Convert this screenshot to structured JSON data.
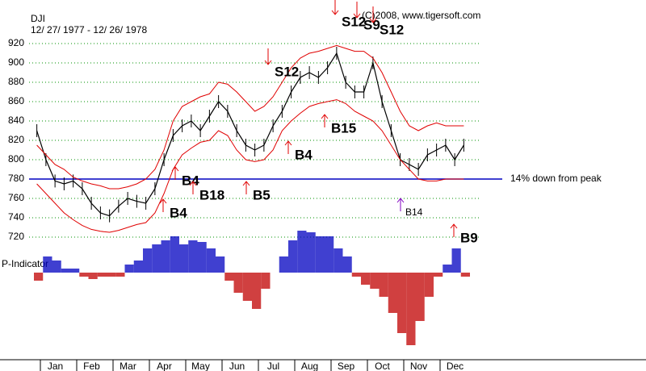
{
  "chart_data": {
    "type": "price-bands",
    "title": "DJI",
    "subtitle": "12/ 27/ 1977 - 12/ 26/ 1978",
    "credit": "(C)2008, www.tigersoft.com",
    "categories": [
      "Jan",
      "Feb",
      "Mar",
      "Apr",
      "May",
      "Jun",
      "Jul",
      "Aug",
      "Sep",
      "Oct",
      "Nov",
      "Dec"
    ],
    "ylim": [
      720,
      920
    ],
    "yticks": [
      720,
      740,
      760,
      780,
      800,
      820,
      840,
      860,
      880,
      900,
      920
    ],
    "grid": true,
    "series": [
      {
        "color": "#000000",
        "values": [
          [
            830,
            800,
            778,
            775
          ],
          [
            778,
            770,
            755,
            745
          ],
          [
            742,
            752,
            760,
            757
          ],
          [
            755,
            770,
            800,
            825
          ],
          [
            835,
            840,
            830,
            845
          ],
          [
            860,
            850,
            830,
            815
          ],
          [
            810,
            815,
            835,
            850
          ],
          [
            870,
            885,
            890,
            885
          ],
          [
            895,
            910,
            880,
            870
          ],
          [
            870,
            900,
            860,
            830
          ],
          [
            800,
            795,
            790,
            805
          ],
          [
            810,
            815,
            800,
            815
          ]
        ]
      },
      {
        "color": "#e00000",
        "values": [
          [
            815,
            805,
            795,
            790
          ],
          [
            782,
            778,
            775,
            773
          ],
          [
            770,
            770,
            772,
            775
          ],
          [
            780,
            790,
            810,
            840
          ],
          [
            855,
            860,
            865,
            868
          ],
          [
            880,
            878,
            870,
            860
          ],
          [
            850,
            855,
            865,
            880
          ],
          [
            895,
            905,
            910,
            912
          ],
          [
            915,
            918,
            915,
            912
          ],
          [
            912,
            905,
            890,
            870
          ],
          [
            850,
            835,
            830,
            835
          ],
          [
            838,
            835,
            835,
            835
          ]
        ]
      },
      {
        "color": "#e00000",
        "values": [
          [
            775,
            765,
            755,
            745
          ],
          [
            738,
            732,
            728,
            726
          ],
          [
            725,
            727,
            730,
            733
          ],
          [
            735,
            745,
            765,
            790
          ],
          [
            805,
            812,
            818,
            820
          ],
          [
            830,
            825,
            810,
            800
          ],
          [
            798,
            800,
            810,
            830
          ],
          [
            840,
            848,
            855,
            858
          ],
          [
            860,
            862,
            858,
            850
          ],
          [
            845,
            840,
            830,
            815
          ],
          [
            800,
            790,
            780,
            778
          ],
          [
            778,
            780,
            780,
            780
          ]
        ]
      }
    ],
    "reference_line": {
      "value": 780,
      "label": "14% down from peak",
      "color": "#0000c0"
    },
    "indicator": {
      "name": "P-Indicator",
      "ylim": [
        -95,
        55
      ],
      "positive_color": "#0000c0",
      "negative_color": "#c00000",
      "values": [
        [
          -10,
          20,
          15,
          5
        ],
        [
          5,
          -5,
          -8,
          -5
        ],
        [
          -5,
          -5,
          10,
          15
        ],
        [
          30,
          35,
          40,
          45
        ],
        [
          35,
          40,
          38,
          30
        ],
        [
          20,
          -10,
          -25,
          -35
        ],
        [
          -45,
          -20,
          0,
          20
        ],
        [
          40,
          52,
          50,
          45
        ],
        [
          45,
          30,
          20,
          -5
        ],
        [
          -15,
          -20,
          -30,
          -50
        ],
        [
          -75,
          -90,
          -60,
          -30
        ],
        [
          -5,
          10,
          30,
          -5
        ]
      ]
    },
    "annotations": [
      "S12",
      "S12",
      "S9",
      "S12",
      "B4",
      "B18",
      "B4",
      "B5",
      "B4",
      "B15",
      "B14",
      "B9"
    ]
  }
}
